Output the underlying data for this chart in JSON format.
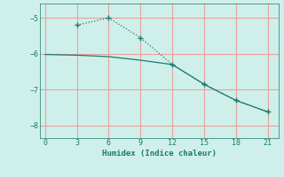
{
  "xlabel": "Humidex (Indice chaleur)",
  "bg_color": "#cff0ea",
  "line_color": "#1a7a6e",
  "grid_color": "#e8a0a0",
  "line1_x": [
    3,
    6,
    9,
    12,
    15,
    18,
    21
  ],
  "line1_y": [
    -5.2,
    -5.0,
    -5.55,
    -6.3,
    -6.85,
    -7.3,
    -7.62
  ],
  "line2_x": [
    0,
    3,
    6,
    9,
    12,
    15,
    18,
    21
  ],
  "line2_y": [
    -6.02,
    -6.04,
    -6.08,
    -6.18,
    -6.3,
    -6.85,
    -7.3,
    -7.62
  ],
  "xlim": [
    -0.5,
    22
  ],
  "ylim": [
    -8.35,
    -4.6
  ],
  "xticks": [
    0,
    3,
    6,
    9,
    12,
    15,
    18,
    21
  ],
  "yticks": [
    -8,
    -7,
    -6,
    -5
  ]
}
